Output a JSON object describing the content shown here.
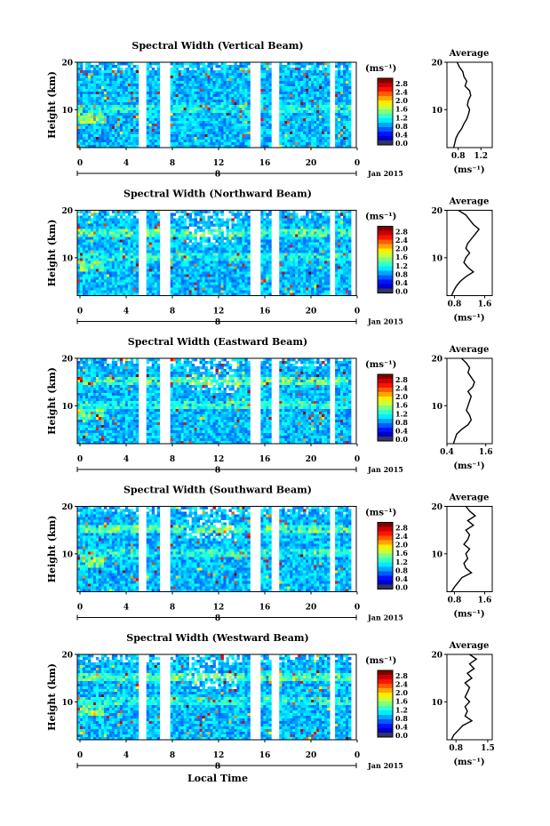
{
  "footer": {
    "xlabel": "Local Time"
  },
  "chart_data": [
    {
      "type": "heatmap",
      "title": "Spectral Width (Vertical Beam)",
      "ylabel": "Height (km)",
      "x_ticks": [
        "0",
        "4",
        "8",
        "12",
        "16",
        "20",
        "0"
      ],
      "y_ticks": [
        "20",
        "10"
      ],
      "date_marker": "8",
      "date_label": "Jan 2015",
      "colorbar": {
        "unit_label": "(ms⁻¹)",
        "ticks": [
          "2.8",
          "2.4",
          "2.0",
          "1.6",
          "1.2",
          "0.8",
          "0.4",
          "0.0"
        ],
        "range": [
          0,
          3.0
        ]
      },
      "average": {
        "title": "Average",
        "x_ticks": [
          "0.8",
          "1.2"
        ],
        "xlim": [
          0.6,
          1.4
        ],
        "y_ticks": [
          "20",
          "10"
        ],
        "xlabel": "(ms⁻¹)",
        "heights": [
          2,
          3,
          4,
          5,
          6,
          7,
          8,
          9,
          10,
          11,
          12,
          13,
          14,
          15,
          16,
          17,
          18,
          19,
          20
        ],
        "values": [
          0.72,
          0.74,
          0.76,
          0.8,
          0.86,
          0.9,
          0.95,
          0.98,
          1.0,
          0.96,
          0.98,
          1.02,
          1.0,
          0.92,
          0.95,
          0.9,
          0.88,
          0.82,
          0.78
        ]
      }
    },
    {
      "type": "heatmap",
      "title": "Spectral Width (Northward Beam)",
      "ylabel": "Height (km)",
      "x_ticks": [
        "0",
        "4",
        "8",
        "12",
        "16",
        "20",
        "0"
      ],
      "y_ticks": [
        "20",
        "10"
      ],
      "date_marker": "8",
      "date_label": "Jan 2015",
      "colorbar": {
        "unit_label": "(ms⁻¹)",
        "ticks": [
          "2.8",
          "2.4",
          "2.0",
          "1.6",
          "1.2",
          "0.8",
          "0.4",
          "0.0"
        ],
        "range": [
          0,
          3.0
        ]
      },
      "average": {
        "title": "Average",
        "x_ticks": [
          "0.8",
          "1.6"
        ],
        "xlim": [
          0.6,
          1.8
        ],
        "y_ticks": [
          "20",
          "10"
        ],
        "xlabel": "(ms⁻¹)",
        "heights": [
          2,
          3,
          4,
          5,
          6,
          7,
          8,
          9,
          10,
          11,
          12,
          13,
          14,
          15,
          16,
          17,
          18,
          19,
          20
        ],
        "values": [
          0.72,
          0.78,
          0.85,
          0.95,
          1.1,
          1.3,
          1.15,
          1.05,
          1.1,
          1.2,
          1.1,
          1.15,
          1.25,
          1.35,
          1.45,
          1.3,
          1.2,
          1.1,
          0.9
        ]
      }
    },
    {
      "type": "heatmap",
      "title": "Spectral Width (Eastward Beam)",
      "ylabel": "Height (km)",
      "x_ticks": [
        "0",
        "4",
        "8",
        "12",
        "16",
        "20",
        "0"
      ],
      "y_ticks": [
        "20",
        "10"
      ],
      "date_marker": "8",
      "date_label": "Jan 2015",
      "colorbar": {
        "unit_label": "(ms⁻¹)",
        "ticks": [
          "2.8",
          "2.4",
          "2.0",
          "1.6",
          "1.2",
          "0.8",
          "0.4",
          "0.0"
        ],
        "range": [
          0,
          3.0
        ]
      },
      "average": {
        "title": "Average",
        "x_ticks": [
          "0.4",
          "1.6"
        ],
        "xlim": [
          0.4,
          1.8
        ],
        "y_ticks": [
          "20",
          "10"
        ],
        "xlabel": "(ms⁻¹)",
        "heights": [
          2,
          3,
          4,
          5,
          6,
          7,
          8,
          9,
          10,
          11,
          12,
          13,
          14,
          15,
          16,
          17,
          18,
          19,
          20
        ],
        "values": [
          0.6,
          0.65,
          0.7,
          0.85,
          1.05,
          1.15,
          1.1,
          1.0,
          1.05,
          1.1,
          1.15,
          1.05,
          1.2,
          1.25,
          1.15,
          1.05,
          1.1,
          1.0,
          0.85
        ]
      }
    },
    {
      "type": "heatmap",
      "title": "Spectral Width (Southward Beam)",
      "ylabel": "Height (km)",
      "x_ticks": [
        "0",
        "4",
        "8",
        "12",
        "16",
        "20",
        "0"
      ],
      "y_ticks": [
        "20",
        "10"
      ],
      "date_marker": "8",
      "date_label": "Jan 2015",
      "colorbar": {
        "unit_label": "(ms⁻¹)",
        "ticks": [
          "2.8",
          "2.4",
          "2.0",
          "1.6",
          "1.2",
          "0.8",
          "0.4",
          "0.0"
        ],
        "range": [
          0,
          3.0
        ]
      },
      "average": {
        "title": "Average",
        "x_ticks": [
          "0.8",
          "1.6"
        ],
        "xlim": [
          0.6,
          1.8
        ],
        "y_ticks": [
          "20",
          "10"
        ],
        "xlabel": "(ms⁻¹)",
        "heights": [
          2,
          3,
          4,
          5,
          6,
          7,
          8,
          9,
          10,
          11,
          12,
          13,
          14,
          15,
          16,
          17,
          18,
          19,
          20
        ],
        "values": [
          0.72,
          0.8,
          0.9,
          1.0,
          1.25,
          1.1,
          1.05,
          1.15,
          1.1,
          1.2,
          1.05,
          1.15,
          1.2,
          1.1,
          1.3,
          1.15,
          1.35,
          1.2,
          1.1
        ]
      }
    },
    {
      "type": "heatmap",
      "title": "Spectral Width (Westward Beam)",
      "ylabel": "Height (km)",
      "x_ticks": [
        "0",
        "4",
        "8",
        "12",
        "16",
        "20",
        "0"
      ],
      "y_ticks": [
        "20",
        "10"
      ],
      "date_marker": "8",
      "date_label": "Jan 2015",
      "colorbar": {
        "unit_label": "(ms⁻¹)",
        "ticks": [
          "2.8",
          "2.4",
          "2.0",
          "1.6",
          "1.2",
          "0.8",
          "0.4",
          "0.0"
        ],
        "range": [
          0,
          3.0
        ]
      },
      "average": {
        "title": "Average",
        "x_ticks": [
          "0.8",
          "1.5"
        ],
        "xlim": [
          0.6,
          1.6
        ],
        "y_ticks": [
          "20",
          "10"
        ],
        "xlabel": "(ms⁻¹)",
        "heights": [
          2,
          3,
          4,
          5,
          6,
          7,
          8,
          9,
          10,
          11,
          12,
          13,
          14,
          15,
          16,
          17,
          18,
          19,
          20
        ],
        "values": [
          0.7,
          0.75,
          0.85,
          0.95,
          1.15,
          1.0,
          1.05,
          1.0,
          1.1,
          1.0,
          1.05,
          1.1,
          1.0,
          1.15,
          1.05,
          1.2,
          1.1,
          1.25,
          1.1
        ]
      }
    }
  ]
}
